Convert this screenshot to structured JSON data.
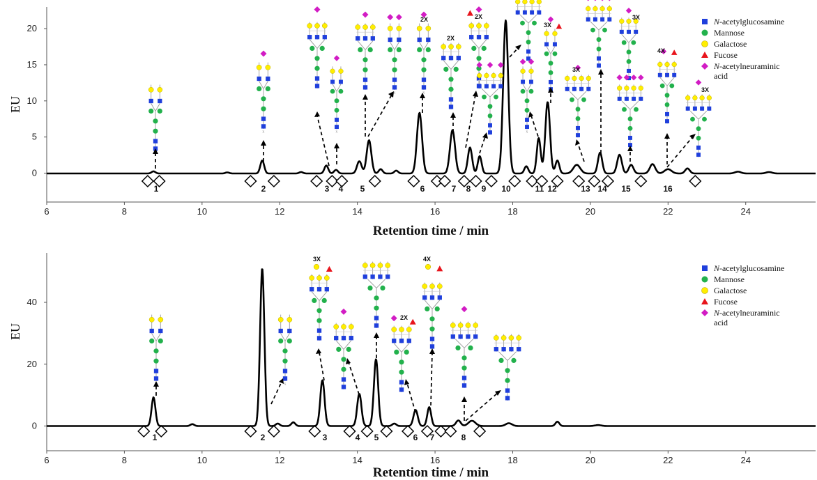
{
  "colors": {
    "GlcNAc": "#1f3fdc",
    "Man": "#22b14c",
    "Gal": "#ffee00",
    "Fuc": "#e8141c",
    "NeuAc": "#d21cc4",
    "trace": "#000000"
  },
  "chart_data": [
    {
      "type": "line",
      "title": "",
      "xlabel": "Retention time / min",
      "ylabel": "EU",
      "xlim": [
        6,
        25.8
      ],
      "ylim": [
        -4,
        23
      ],
      "xticks": [
        "6",
        "8",
        "10",
        "12",
        "14",
        "16",
        "18",
        "20",
        "22",
        "24"
      ],
      "yticks": [
        "0",
        "5",
        "10",
        "15",
        "20"
      ],
      "fractions": [
        "1",
        "2",
        "3",
        "4",
        "5",
        "6",
        "7",
        "8",
        "9",
        "10",
        "11",
        "12",
        "13",
        "14",
        "15",
        "16"
      ],
      "legend": {
        "placement": "top-right",
        "entries": [
          {
            "symbol": "square",
            "color_key": "GlcNAc",
            "italic": "N",
            "rest": "-acetylglucosamine"
          },
          {
            "symbol": "circle",
            "color_key": "Man",
            "italic": "",
            "rest": "Mannose"
          },
          {
            "symbol": "circle",
            "color_key": "Gal",
            "italic": "",
            "rest": "Galactose"
          },
          {
            "symbol": "triangle",
            "color_key": "Fuc",
            "italic": "",
            "rest": "Fucose"
          },
          {
            "symbol": "diamond",
            "color_key": "NeuAc",
            "italic": "N",
            "rest": "-acetylneuraminic",
            "rest2": "acid"
          }
        ]
      },
      "series": [
        {
          "baseline": -0.05,
          "peaks": [
            {
              "x": 8.75,
              "h": 0.3,
              "w": 0.05
            },
            {
              "x": 10.65,
              "h": 0.15,
              "w": 0.05
            },
            {
              "x": 11.55,
              "h": 1.8,
              "w": 0.05
            },
            {
              "x": 12.55,
              "h": 0.2,
              "w": 0.05
            },
            {
              "x": 13.2,
              "h": 1.1,
              "w": 0.05
            },
            {
              "x": 13.45,
              "h": 0.5,
              "w": 0.05
            },
            {
              "x": 14.05,
              "h": 1.7,
              "w": 0.06
            },
            {
              "x": 14.3,
              "h": 4.6,
              "w": 0.06
            },
            {
              "x": 14.6,
              "h": 0.6,
              "w": 0.05
            },
            {
              "x": 15.0,
              "h": 0.4,
              "w": 0.05
            },
            {
              "x": 15.6,
              "h": 8.4,
              "w": 0.065
            },
            {
              "x": 16.45,
              "h": 6.0,
              "w": 0.065
            },
            {
              "x": 16.9,
              "h": 3.6,
              "w": 0.055
            },
            {
              "x": 17.15,
              "h": 2.4,
              "w": 0.05
            },
            {
              "x": 17.82,
              "h": 21.2,
              "w": 0.065
            },
            {
              "x": 18.35,
              "h": 1.0,
              "w": 0.05
            },
            {
              "x": 18.67,
              "h": 4.9,
              "w": 0.05
            },
            {
              "x": 18.9,
              "h": 9.9,
              "w": 0.06
            },
            {
              "x": 19.15,
              "h": 1.8,
              "w": 0.05
            },
            {
              "x": 19.65,
              "h": 1.2,
              "w": 0.09
            },
            {
              "x": 20.25,
              "h": 2.9,
              "w": 0.055
            },
            {
              "x": 20.75,
              "h": 2.6,
              "w": 0.06
            },
            {
              "x": 21.05,
              "h": 1.2,
              "w": 0.06
            },
            {
              "x": 21.6,
              "h": 1.3,
              "w": 0.07
            },
            {
              "x": 22.0,
              "h": 0.6,
              "w": 0.09
            },
            {
              "x": 22.5,
              "h": 0.7,
              "w": 0.06
            },
            {
              "x": 23.8,
              "h": 0.25,
              "w": 0.08
            },
            {
              "x": 24.6,
              "h": 0.2,
              "w": 0.08
            }
          ]
        }
      ],
      "markers": [
        8.6,
        8.9,
        11.25,
        11.85,
        12.95,
        13.35,
        13.6,
        14.45,
        15.45,
        16.05,
        16.25,
        16.75,
        17.05,
        17.45,
        18.05,
        18.5,
        18.75,
        19.15,
        19.7,
        20.1,
        20.45,
        21.3,
        22.7
      ]
    },
    {
      "type": "line",
      "title": "",
      "xlabel": "Retention time / min",
      "ylabel": "EU",
      "xlim": [
        6,
        25.8
      ],
      "ylim": [
        -8,
        56
      ],
      "xticks": [
        "6",
        "8",
        "10",
        "12",
        "14",
        "16",
        "18",
        "20",
        "22",
        "24"
      ],
      "yticks": [
        "0",
        "20",
        "40"
      ],
      "fractions": [
        "1",
        "2",
        "3",
        "4",
        "5",
        "6",
        "7",
        "8"
      ],
      "legend": {
        "placement": "top-right",
        "entries": [
          {
            "symbol": "square",
            "color_key": "GlcNAc",
            "italic": "N",
            "rest": "-acetylglucosamine"
          },
          {
            "symbol": "circle",
            "color_key": "Man",
            "italic": "",
            "rest": "Mannose"
          },
          {
            "symbol": "circle",
            "color_key": "Gal",
            "italic": "",
            "rest": "Galactose"
          },
          {
            "symbol": "triangle",
            "color_key": "Fuc",
            "italic": "",
            "rest": "Fucose"
          },
          {
            "symbol": "diamond",
            "color_key": "NeuAc",
            "italic": "N",
            "rest": "-acetylneuraminic",
            "rest2": "acid"
          }
        ]
      },
      "series": [
        {
          "baseline": 0,
          "peaks": [
            {
              "x": 8.75,
              "h": 9.3,
              "w": 0.05
            },
            {
              "x": 9.75,
              "h": 0.6,
              "w": 0.05
            },
            {
              "x": 11.55,
              "h": 51,
              "w": 0.055
            },
            {
              "x": 11.95,
              "h": 0.8,
              "w": 0.05
            },
            {
              "x": 12.35,
              "h": 1.2,
              "w": 0.05
            },
            {
              "x": 13.1,
              "h": 14.8,
              "w": 0.055
            },
            {
              "x": 14.05,
              "h": 10.4,
              "w": 0.055
            },
            {
              "x": 14.48,
              "h": 21.6,
              "w": 0.055
            },
            {
              "x": 14.95,
              "h": 0.8,
              "w": 0.05
            },
            {
              "x": 15.5,
              "h": 5.2,
              "w": 0.055
            },
            {
              "x": 15.85,
              "h": 6.1,
              "w": 0.05
            },
            {
              "x": 16.6,
              "h": 1.8,
              "w": 0.06
            },
            {
              "x": 16.95,
              "h": 1.7,
              "w": 0.09
            },
            {
              "x": 17.9,
              "h": 0.9,
              "w": 0.08
            },
            {
              "x": 19.15,
              "h": 1.4,
              "w": 0.05
            },
            {
              "x": 20.2,
              "h": 0.3,
              "w": 0.08
            }
          ]
        }
      ],
      "markers": [
        8.5,
        8.95,
        11.25,
        11.85,
        12.9,
        13.8,
        14.25,
        14.75,
        15.3,
        15.8,
        16.15,
        16.4,
        17.15
      ]
    }
  ]
}
